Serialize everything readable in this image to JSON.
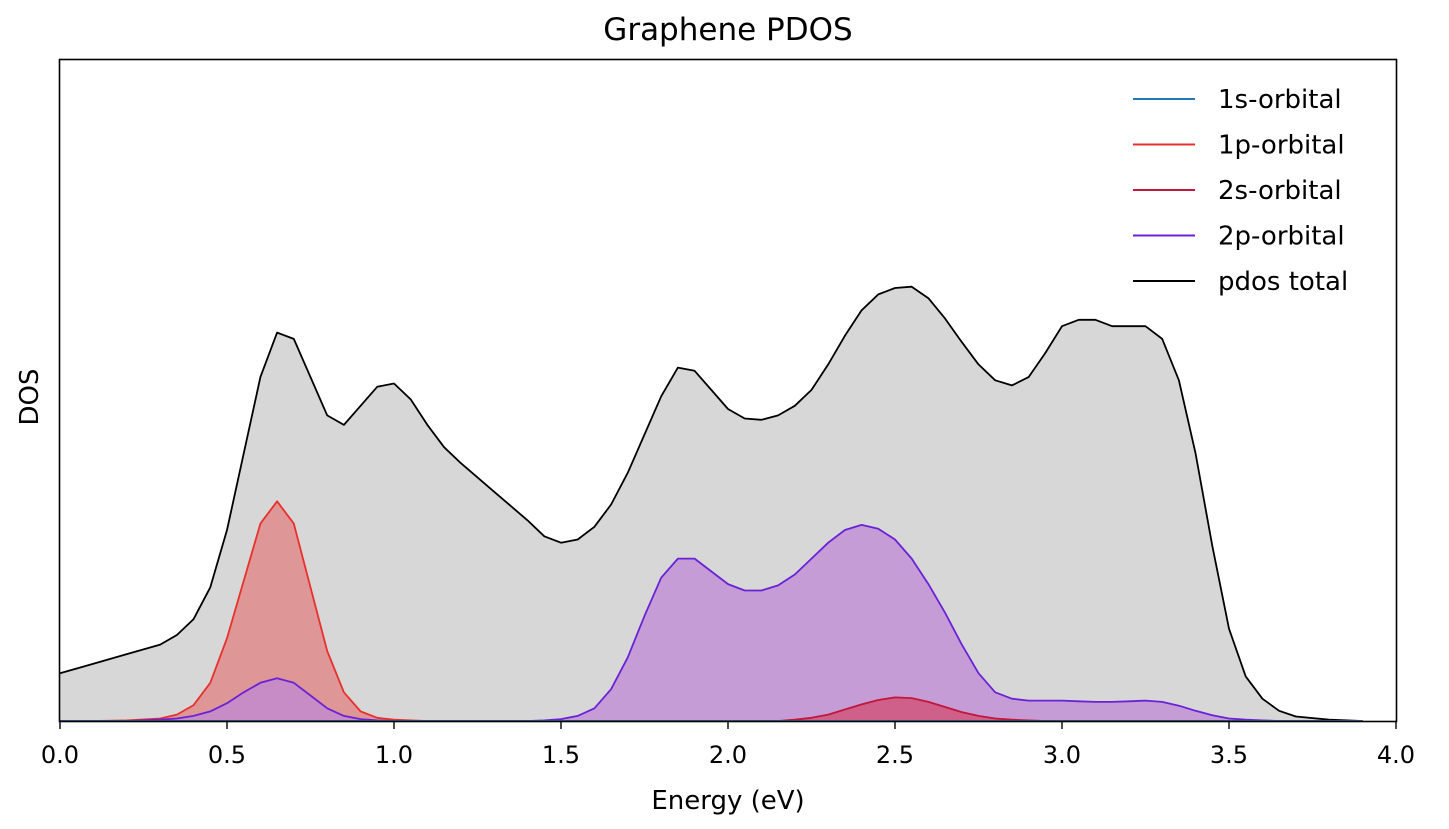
{
  "chart_data": {
    "type": "area",
    "title": "Graphene PDOS",
    "xlabel": "Energy (eV)",
    "ylabel": "DOS",
    "xlim": [
      0.0,
      4.0
    ],
    "ylim": [
      0,
      1.0
    ],
    "xticks": [
      "0.0",
      "0.5",
      "1.0",
      "1.5",
      "2.0",
      "2.5",
      "3.0",
      "3.5",
      "4.0"
    ],
    "grid": false,
    "legend_position": "top-right",
    "x": [
      0.0,
      0.1,
      0.2,
      0.3,
      0.35,
      0.4,
      0.45,
      0.5,
      0.55,
      0.6,
      0.65,
      0.7,
      0.75,
      0.8,
      0.85,
      0.9,
      0.95,
      1.0,
      1.05,
      1.1,
      1.15,
      1.2,
      1.3,
      1.4,
      1.45,
      1.5,
      1.55,
      1.6,
      1.65,
      1.7,
      1.75,
      1.8,
      1.85,
      1.9,
      1.95,
      2.0,
      2.05,
      2.1,
      2.15,
      2.2,
      2.25,
      2.3,
      2.35,
      2.4,
      2.45,
      2.5,
      2.55,
      2.6,
      2.65,
      2.7,
      2.75,
      2.8,
      2.85,
      2.9,
      2.95,
      3.0,
      3.05,
      3.1,
      3.15,
      3.2,
      3.25,
      3.3,
      3.35,
      3.4,
      3.45,
      3.5,
      3.55,
      3.6,
      3.65,
      3.7,
      3.8,
      3.9
    ],
    "series": [
      {
        "name": "1s-orbital",
        "color": "#1f77b4",
        "fill": false,
        "values": [
          0,
          0,
          0,
          0,
          0,
          0,
          0,
          0,
          0,
          0,
          0,
          0,
          0,
          0,
          0,
          0,
          0,
          0,
          0,
          0,
          0,
          0,
          0,
          0,
          0,
          0,
          0,
          0,
          0,
          0,
          0,
          0,
          0,
          0,
          0,
          0,
          0,
          0,
          0,
          0,
          0,
          0,
          0,
          0,
          0,
          0,
          0,
          0,
          0,
          0,
          0,
          0,
          0,
          0,
          0,
          0,
          0,
          0,
          0,
          0,
          0,
          0,
          0,
          0,
          0,
          0,
          0,
          0,
          0,
          0,
          0,
          0
        ]
      },
      {
        "name": "1p-orbital",
        "color": "#e8302c",
        "fill": true,
        "fill_color": "#e08080",
        "values": [
          0,
          0,
          0.001,
          0.004,
          0.01,
          0.025,
          0.06,
          0.13,
          0.22,
          0.31,
          0.345,
          0.31,
          0.21,
          0.11,
          0.045,
          0.015,
          0.005,
          0.002,
          0.001,
          0,
          0,
          0,
          0,
          0,
          0,
          0,
          0,
          0,
          0,
          0,
          0,
          0,
          0,
          0,
          0,
          0,
          0,
          0,
          0,
          0,
          0,
          0,
          0,
          0,
          0,
          0,
          0,
          0,
          0,
          0,
          0,
          0,
          0,
          0,
          0,
          0,
          0,
          0,
          0,
          0,
          0,
          0,
          0,
          0,
          0,
          0,
          0,
          0,
          0,
          0,
          0,
          0
        ]
      },
      {
        "name": "2s-orbital",
        "color": "#c3163b",
        "fill": true,
        "fill_color": "#d04c70",
        "values": [
          0,
          0,
          0,
          0,
          0,
          0,
          0,
          0,
          0,
          0,
          0,
          0,
          0,
          0,
          0,
          0,
          0,
          0,
          0,
          0,
          0,
          0,
          0,
          0,
          0,
          0,
          0,
          0,
          0,
          0,
          0,
          0,
          0,
          0,
          0,
          0,
          0,
          0,
          0,
          0.002,
          0.005,
          0.01,
          0.018,
          0.026,
          0.033,
          0.037,
          0.036,
          0.03,
          0.022,
          0.014,
          0.008,
          0.004,
          0.002,
          0.001,
          0,
          0,
          0,
          0,
          0,
          0,
          0,
          0,
          0,
          0,
          0,
          0,
          0,
          0,
          0,
          0,
          0,
          0
        ]
      },
      {
        "name": "2p-orbital",
        "color": "#6a22d6",
        "fill": true,
        "fill_color": "#bf88d6",
        "values": [
          0,
          0,
          0,
          0.002,
          0.004,
          0.008,
          0.015,
          0.028,
          0.045,
          0.06,
          0.067,
          0.06,
          0.04,
          0.02,
          0.008,
          0.003,
          0.001,
          0,
          0,
          0,
          0,
          0,
          0,
          0,
          0.001,
          0.003,
          0.008,
          0.02,
          0.05,
          0.1,
          0.165,
          0.225,
          0.255,
          0.255,
          0.235,
          0.215,
          0.205,
          0.205,
          0.213,
          0.23,
          0.255,
          0.28,
          0.3,
          0.308,
          0.302,
          0.285,
          0.255,
          0.215,
          0.17,
          0.12,
          0.075,
          0.045,
          0.035,
          0.032,
          0.032,
          0.032,
          0.031,
          0.03,
          0.03,
          0.031,
          0.032,
          0.03,
          0.024,
          0.016,
          0.009,
          0.004,
          0.002,
          0.001,
          0,
          0,
          0,
          0
        ]
      },
      {
        "name": "pdos total",
        "color": "#000000",
        "fill": true,
        "fill_color": "#d7d7d7",
        "values": [
          0.075,
          0.09,
          0.105,
          0.12,
          0.135,
          0.16,
          0.21,
          0.3,
          0.42,
          0.54,
          0.61,
          0.6,
          0.54,
          0.48,
          0.465,
          0.495,
          0.525,
          0.53,
          0.505,
          0.465,
          0.43,
          0.405,
          0.36,
          0.315,
          0.29,
          0.28,
          0.285,
          0.305,
          0.34,
          0.39,
          0.45,
          0.51,
          0.555,
          0.55,
          0.52,
          0.49,
          0.475,
          0.473,
          0.48,
          0.495,
          0.52,
          0.56,
          0.605,
          0.645,
          0.67,
          0.68,
          0.682,
          0.664,
          0.632,
          0.595,
          0.56,
          0.535,
          0.527,
          0.54,
          0.578,
          0.62,
          0.63,
          0.63,
          0.62,
          0.62,
          0.62,
          0.6,
          0.535,
          0.42,
          0.275,
          0.145,
          0.07,
          0.035,
          0.016,
          0.007,
          0.002,
          0
        ]
      }
    ]
  }
}
